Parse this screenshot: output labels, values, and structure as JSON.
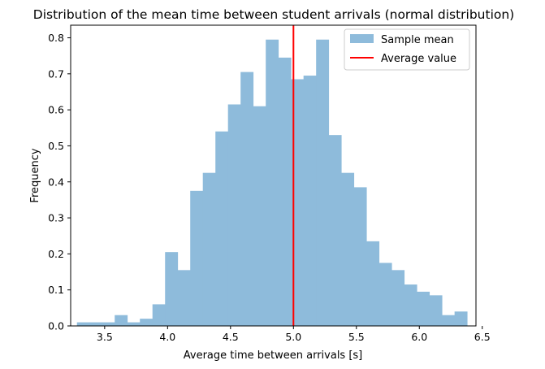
{
  "chart_data": {
    "type": "bar",
    "title": "Distribution of the mean time between student arrivals (normal distribution)",
    "xlabel": "Average time between arrivals [s]",
    "ylabel": "Frequency",
    "xlim": [
      3.23,
      6.45
    ],
    "ylim": [
      0,
      0.835
    ],
    "xticks": [
      "3.5",
      "4.0",
      "4.5",
      "5.0",
      "5.5",
      "6.0",
      "6.5"
    ],
    "yticks": [
      "0.0",
      "0.1",
      "0.2",
      "0.3",
      "0.4",
      "0.5",
      "0.6",
      "0.7",
      "0.8"
    ],
    "grid": false,
    "legend_position": "top-right",
    "legend": [
      "Sample mean",
      "Average value"
    ],
    "histogram": {
      "name": "Sample mean",
      "color": "#8ebbdb",
      "bin_edges": [
        3.28,
        3.38,
        3.48,
        3.58,
        3.68,
        3.78,
        3.88,
        3.98,
        4.08,
        4.18,
        4.28,
        4.38,
        4.48,
        4.58,
        4.68,
        4.78,
        4.88,
        4.98,
        5.08,
        5.18,
        5.28,
        5.38,
        5.48,
        5.58,
        5.68,
        5.78,
        5.88,
        5.98,
        6.08,
        6.18,
        6.28,
        6.38
      ],
      "values": [
        0.01,
        0.01,
        0.01,
        0.03,
        0.01,
        0.02,
        0.06,
        0.205,
        0.155,
        0.375,
        0.425,
        0.54,
        0.615,
        0.705,
        0.61,
        0.795,
        0.745,
        0.685,
        0.695,
        0.795,
        0.53,
        0.425,
        0.385,
        0.235,
        0.175,
        0.155,
        0.115,
        0.095,
        0.085,
        0.03,
        0.04
      ]
    },
    "vline": {
      "name": "Average value",
      "x": 5.0,
      "color": "#ff0000"
    }
  }
}
